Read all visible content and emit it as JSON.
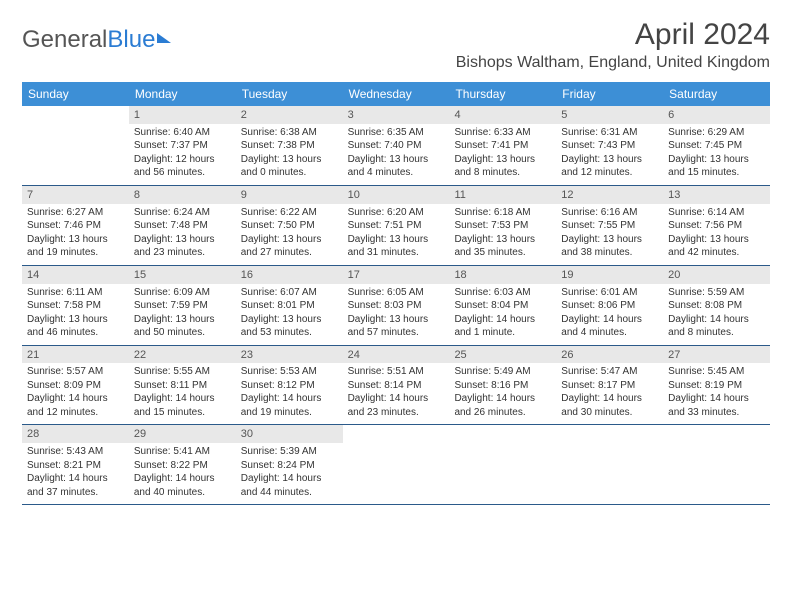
{
  "logo": {
    "text1": "General",
    "text2": "Blue"
  },
  "title": "April 2024",
  "location": "Bishops Waltham, England, United Kingdom",
  "colors": {
    "header_bg": "#3d8fd6",
    "header_text": "#ffffff",
    "row_border": "#2b5a8a",
    "daynum_band": "#e8e8e8",
    "logo_blue": "#2b7cd3"
  },
  "dayNames": [
    "Sunday",
    "Monday",
    "Tuesday",
    "Wednesday",
    "Thursday",
    "Friday",
    "Saturday"
  ],
  "weeks": [
    [
      null,
      {
        "n": 1,
        "sr": "6:40 AM",
        "ss": "7:37 PM",
        "dl": "12 hours and 56 minutes."
      },
      {
        "n": 2,
        "sr": "6:38 AM",
        "ss": "7:38 PM",
        "dl": "13 hours and 0 minutes."
      },
      {
        "n": 3,
        "sr": "6:35 AM",
        "ss": "7:40 PM",
        "dl": "13 hours and 4 minutes."
      },
      {
        "n": 4,
        "sr": "6:33 AM",
        "ss": "7:41 PM",
        "dl": "13 hours and 8 minutes."
      },
      {
        "n": 5,
        "sr": "6:31 AM",
        "ss": "7:43 PM",
        "dl": "13 hours and 12 minutes."
      },
      {
        "n": 6,
        "sr": "6:29 AM",
        "ss": "7:45 PM",
        "dl": "13 hours and 15 minutes."
      }
    ],
    [
      {
        "n": 7,
        "sr": "6:27 AM",
        "ss": "7:46 PM",
        "dl": "13 hours and 19 minutes."
      },
      {
        "n": 8,
        "sr": "6:24 AM",
        "ss": "7:48 PM",
        "dl": "13 hours and 23 minutes."
      },
      {
        "n": 9,
        "sr": "6:22 AM",
        "ss": "7:50 PM",
        "dl": "13 hours and 27 minutes."
      },
      {
        "n": 10,
        "sr": "6:20 AM",
        "ss": "7:51 PM",
        "dl": "13 hours and 31 minutes."
      },
      {
        "n": 11,
        "sr": "6:18 AM",
        "ss": "7:53 PM",
        "dl": "13 hours and 35 minutes."
      },
      {
        "n": 12,
        "sr": "6:16 AM",
        "ss": "7:55 PM",
        "dl": "13 hours and 38 minutes."
      },
      {
        "n": 13,
        "sr": "6:14 AM",
        "ss": "7:56 PM",
        "dl": "13 hours and 42 minutes."
      }
    ],
    [
      {
        "n": 14,
        "sr": "6:11 AM",
        "ss": "7:58 PM",
        "dl": "13 hours and 46 minutes."
      },
      {
        "n": 15,
        "sr": "6:09 AM",
        "ss": "7:59 PM",
        "dl": "13 hours and 50 minutes."
      },
      {
        "n": 16,
        "sr": "6:07 AM",
        "ss": "8:01 PM",
        "dl": "13 hours and 53 minutes."
      },
      {
        "n": 17,
        "sr": "6:05 AM",
        "ss": "8:03 PM",
        "dl": "13 hours and 57 minutes."
      },
      {
        "n": 18,
        "sr": "6:03 AM",
        "ss": "8:04 PM",
        "dl": "14 hours and 1 minute."
      },
      {
        "n": 19,
        "sr": "6:01 AM",
        "ss": "8:06 PM",
        "dl": "14 hours and 4 minutes."
      },
      {
        "n": 20,
        "sr": "5:59 AM",
        "ss": "8:08 PM",
        "dl": "14 hours and 8 minutes."
      }
    ],
    [
      {
        "n": 21,
        "sr": "5:57 AM",
        "ss": "8:09 PM",
        "dl": "14 hours and 12 minutes."
      },
      {
        "n": 22,
        "sr": "5:55 AM",
        "ss": "8:11 PM",
        "dl": "14 hours and 15 minutes."
      },
      {
        "n": 23,
        "sr": "5:53 AM",
        "ss": "8:12 PM",
        "dl": "14 hours and 19 minutes."
      },
      {
        "n": 24,
        "sr": "5:51 AM",
        "ss": "8:14 PM",
        "dl": "14 hours and 23 minutes."
      },
      {
        "n": 25,
        "sr": "5:49 AM",
        "ss": "8:16 PM",
        "dl": "14 hours and 26 minutes."
      },
      {
        "n": 26,
        "sr": "5:47 AM",
        "ss": "8:17 PM",
        "dl": "14 hours and 30 minutes."
      },
      {
        "n": 27,
        "sr": "5:45 AM",
        "ss": "8:19 PM",
        "dl": "14 hours and 33 minutes."
      }
    ],
    [
      {
        "n": 28,
        "sr": "5:43 AM",
        "ss": "8:21 PM",
        "dl": "14 hours and 37 minutes."
      },
      {
        "n": 29,
        "sr": "5:41 AM",
        "ss": "8:22 PM",
        "dl": "14 hours and 40 minutes."
      },
      {
        "n": 30,
        "sr": "5:39 AM",
        "ss": "8:24 PM",
        "dl": "14 hours and 44 minutes."
      },
      null,
      null,
      null,
      null
    ]
  ],
  "labels": {
    "sunrise": "Sunrise: ",
    "sunset": "Sunset: ",
    "daylight": "Daylight: "
  }
}
